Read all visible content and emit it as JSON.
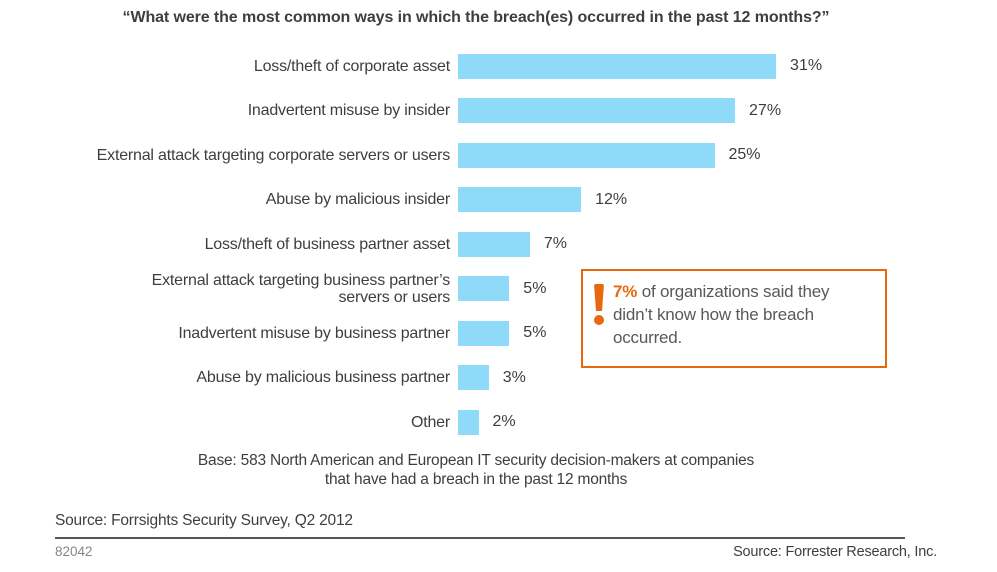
{
  "title": "“What were the most common ways in which the breach(es) occurred in the past 12 months?”",
  "chart_data": {
    "type": "bar",
    "orientation": "horizontal",
    "title": "“What were the most common ways in which the breach(es) occurred in the past 12 months?”",
    "categories": [
      "Loss/theft of corporate asset",
      "Inadvertent misuse by insider",
      "External attack targeting corporate servers or users",
      "Abuse by malicious insider",
      "Loss/theft of business partner asset",
      "External attack targeting business partner’s\nservers or users",
      "Inadvertent misuse by business partner",
      "Abuse by malicious business partner",
      "Other"
    ],
    "values": [
      31,
      27,
      25,
      12,
      7,
      5,
      5,
      3,
      2
    ],
    "value_labels": [
      "31%",
      "27%",
      "25%",
      "12%",
      "7%",
      "5%",
      "5%",
      "3%",
      "2%"
    ],
    "xlim": [
      0,
      33
    ],
    "grid": false,
    "legend": false,
    "bar_color": "#8fdaf8"
  },
  "callout": {
    "icon": "exclamation-icon",
    "highlight": "7%",
    "text": " of organizations said they didn’t know how the breach occurred.",
    "border_color": "#e8680f",
    "accent_color": "#e8680f"
  },
  "base_note": "Base: 583 North American and European IT security decision-makers at companies\nthat have had a breach in the past 12 months",
  "footer": {
    "survey_source": "Source: Forrsights Security Survey, Q2 2012",
    "document_number": "82042",
    "brand_source": "Source: Forrester Research, Inc."
  },
  "colors": {
    "bar_blue": "#8fdaf8",
    "accent_orange": "#e8680f",
    "text_dark": "#3e3e3e",
    "text_gray": "#58595b"
  }
}
